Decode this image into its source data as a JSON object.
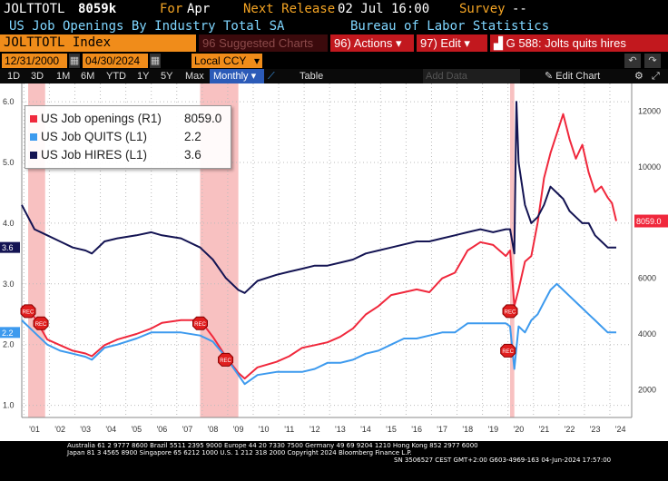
{
  "header": {
    "ticker": "JOLTTOTL",
    "value": "8059k",
    "for_label": "For",
    "for_value": "Apr",
    "next_release_label": "Next Release",
    "next_release_value": "02 Jul 16:00",
    "survey_label": "Survey",
    "survey_value": "--",
    "description": "US Job Openings By Industry Total SA",
    "source": "Bureau of Labor Statistics"
  },
  "toolbar": {
    "security": "JOLTTOTL Index",
    "suggested_charts": "Suggested Charts",
    "actions": "Actions",
    "edit": "Edit",
    "chart_title": "G 588: Jolts quits hires"
  },
  "controls": {
    "start_date": "12/31/2000",
    "end_date": "04/30/2024",
    "currency": "Local CCY"
  },
  "tabs": {
    "periods": [
      "1D",
      "3D",
      "1M",
      "6M",
      "YTD",
      "1Y",
      "5Y",
      "Max"
    ],
    "frequency": "Monthly",
    "table": "Table",
    "add_data": "Add Data",
    "edit_chart": "Edit Chart"
  },
  "legend": {
    "openings": {
      "label": "US Job openings (R1)",
      "value": "8059.0"
    },
    "quits": {
      "label": "US Job QUITS (L1)",
      "value": "2.2"
    },
    "hires": {
      "label": "US Job HIRES (L1)",
      "value": "3.6"
    }
  },
  "rec_label": "REC",
  "axis": {
    "left_ticks": [
      "6.0",
      "5.0",
      "4.0",
      "3.0",
      "2.0",
      "1.0"
    ],
    "right_ticks": [
      "12000",
      "10000",
      "8000",
      "6000",
      "4000",
      "2000"
    ],
    "x_ticks": [
      "'01",
      "'02",
      "'03",
      "'04",
      "'05",
      "'06",
      "'07",
      "'08",
      "'09",
      "'10",
      "'11",
      "'12",
      "'13",
      "'14",
      "'15",
      "'16",
      "'17",
      "'18",
      "'19",
      "'20",
      "'21",
      "'22",
      "'23",
      "'24"
    ],
    "left_markers": {
      "hires": "3.6",
      "quits": "2.2"
    },
    "right_marker": "8059.0"
  },
  "footer": {
    "line1": "Australia 61 2 9777 8600  Brazil 5511 2395 9000  Europe 44 20 7330 7500  Germany 49 69 9204 1210  Hong Kong 852 2977 6000",
    "line2": "Japan 81 3 4565 8900       Singapore 65 6212 1000       U.S. 1 212 318 2000             Copyright 2024 Bloomberg Finance L.P.",
    "line3": "SN 3506527 CEST  GMT+2:00 G603-4969-163 04-Jun-2024 17:57:00"
  },
  "colors": {
    "openings": "#f0283c",
    "quits": "#3d9aee",
    "hires": "#141453",
    "recession": "#f7b6b6"
  },
  "chart_data": {
    "type": "line",
    "x_range": [
      "2000-12",
      "2024-04"
    ],
    "left_axis": {
      "ylim": [
        0.8,
        6.3
      ],
      "ticks": [
        1.0,
        2.0,
        3.0,
        4.0,
        5.0,
        6.0
      ]
    },
    "right_axis": {
      "ylim": [
        1000,
        13000
      ],
      "ticks": [
        2000,
        4000,
        6000,
        8000,
        10000,
        12000
      ]
    },
    "recessions": [
      [
        "2001-03",
        "2001-11"
      ],
      [
        "2007-12",
        "2009-06"
      ],
      [
        "2020-02",
        "2020-04"
      ]
    ],
    "series": [
      {
        "name": "US Job openings (R1)",
        "axis": "right",
        "last": 8059.0,
        "points": [
          [
            "2000-12",
            5000
          ],
          [
            "2001-06",
            4600
          ],
          [
            "2001-12",
            3800
          ],
          [
            "2002-06",
            3600
          ],
          [
            "2002-12",
            3400
          ],
          [
            "2003-06",
            3300
          ],
          [
            "2003-09",
            3200
          ],
          [
            "2004-03",
            3600
          ],
          [
            "2004-09",
            3800
          ],
          [
            "2005-06",
            4000
          ],
          [
            "2006-01",
            4200
          ],
          [
            "2006-06",
            4400
          ],
          [
            "2007-03",
            4500
          ],
          [
            "2007-12",
            4500
          ],
          [
            "2008-06",
            3900
          ],
          [
            "2008-12",
            3200
          ],
          [
            "2009-06",
            2600
          ],
          [
            "2009-09",
            2400
          ],
          [
            "2010-03",
            2800
          ],
          [
            "2010-12",
            3000
          ],
          [
            "2011-06",
            3200
          ],
          [
            "2011-12",
            3500
          ],
          [
            "2012-06",
            3600
          ],
          [
            "2012-12",
            3700
          ],
          [
            "2013-06",
            3900
          ],
          [
            "2013-12",
            4200
          ],
          [
            "2014-06",
            4700
          ],
          [
            "2014-12",
            5000
          ],
          [
            "2015-06",
            5400
          ],
          [
            "2015-12",
            5500
          ],
          [
            "2016-06",
            5600
          ],
          [
            "2016-12",
            5500
          ],
          [
            "2017-06",
            6000
          ],
          [
            "2017-12",
            6200
          ],
          [
            "2018-06",
            7000
          ],
          [
            "2018-12",
            7300
          ],
          [
            "2019-06",
            7200
          ],
          [
            "2019-12",
            6800
          ],
          [
            "2020-02",
            7000
          ],
          [
            "2020-04",
            5000
          ],
          [
            "2020-06",
            5600
          ],
          [
            "2020-09",
            6600
          ],
          [
            "2020-12",
            6800
          ],
          [
            "2021-03",
            8000
          ],
          [
            "2021-06",
            9600
          ],
          [
            "2021-09",
            10500
          ],
          [
            "2021-12",
            11200
          ],
          [
            "2022-03",
            11900
          ],
          [
            "2022-06",
            11000
          ],
          [
            "2022-09",
            10300
          ],
          [
            "2022-12",
            10800
          ],
          [
            "2023-03",
            9800
          ],
          [
            "2023-06",
            9100
          ],
          [
            "2023-09",
            9300
          ],
          [
            "2023-12",
            8900
          ],
          [
            "2024-02",
            8700
          ],
          [
            "2024-04",
            8059
          ]
        ]
      },
      {
        "name": "US Job QUITS (L1)",
        "axis": "left",
        "last": 2.2,
        "points": [
          [
            "2000-12",
            2.4
          ],
          [
            "2001-06",
            2.2
          ],
          [
            "2001-12",
            2.0
          ],
          [
            "2002-06",
            1.9
          ],
          [
            "2002-12",
            1.85
          ],
          [
            "2003-06",
            1.8
          ],
          [
            "2003-09",
            1.75
          ],
          [
            "2004-03",
            1.95
          ],
          [
            "2004-09",
            2.0
          ],
          [
            "2005-06",
            2.1
          ],
          [
            "2006-01",
            2.2
          ],
          [
            "2006-06",
            2.2
          ],
          [
            "2007-03",
            2.2
          ],
          [
            "2007-12",
            2.15
          ],
          [
            "2008-06",
            2.05
          ],
          [
            "2008-12",
            1.8
          ],
          [
            "2009-06",
            1.5
          ],
          [
            "2009-09",
            1.35
          ],
          [
            "2010-03",
            1.5
          ],
          [
            "2010-12",
            1.55
          ],
          [
            "2011-06",
            1.55
          ],
          [
            "2011-12",
            1.55
          ],
          [
            "2012-06",
            1.6
          ],
          [
            "2012-12",
            1.7
          ],
          [
            "2013-06",
            1.7
          ],
          [
            "2013-12",
            1.75
          ],
          [
            "2014-06",
            1.85
          ],
          [
            "2014-12",
            1.9
          ],
          [
            "2015-06",
            2.0
          ],
          [
            "2015-12",
            2.1
          ],
          [
            "2016-06",
            2.1
          ],
          [
            "2016-12",
            2.15
          ],
          [
            "2017-06",
            2.2
          ],
          [
            "2017-12",
            2.2
          ],
          [
            "2018-06",
            2.35
          ],
          [
            "2018-12",
            2.35
          ],
          [
            "2019-06",
            2.35
          ],
          [
            "2019-12",
            2.35
          ],
          [
            "2020-02",
            2.3
          ],
          [
            "2020-04",
            1.6
          ],
          [
            "2020-06",
            2.3
          ],
          [
            "2020-09",
            2.2
          ],
          [
            "2020-12",
            2.4
          ],
          [
            "2021-03",
            2.5
          ],
          [
            "2021-06",
            2.7
          ],
          [
            "2021-09",
            2.9
          ],
          [
            "2021-12",
            3.0
          ],
          [
            "2022-03",
            2.9
          ],
          [
            "2022-06",
            2.8
          ],
          [
            "2022-09",
            2.7
          ],
          [
            "2022-12",
            2.6
          ],
          [
            "2023-03",
            2.5
          ],
          [
            "2023-06",
            2.4
          ],
          [
            "2023-09",
            2.3
          ],
          [
            "2023-12",
            2.2
          ],
          [
            "2024-02",
            2.2
          ],
          [
            "2024-04",
            2.2
          ]
        ]
      },
      {
        "name": "US Job HIRES (L1)",
        "axis": "left",
        "last": 3.6,
        "points": [
          [
            "2000-12",
            4.3
          ],
          [
            "2001-06",
            3.9
          ],
          [
            "2001-12",
            3.8
          ],
          [
            "2002-06",
            3.7
          ],
          [
            "2002-12",
            3.6
          ],
          [
            "2003-06",
            3.55
          ],
          [
            "2003-09",
            3.5
          ],
          [
            "2004-03",
            3.7
          ],
          [
            "2004-09",
            3.75
          ],
          [
            "2005-06",
            3.8
          ],
          [
            "2006-01",
            3.85
          ],
          [
            "2006-06",
            3.8
          ],
          [
            "2007-03",
            3.75
          ],
          [
            "2007-12",
            3.6
          ],
          [
            "2008-06",
            3.4
          ],
          [
            "2008-12",
            3.1
          ],
          [
            "2009-06",
            2.9
          ],
          [
            "2009-09",
            2.85
          ],
          [
            "2010-03",
            3.05
          ],
          [
            "2010-12",
            3.15
          ],
          [
            "2011-06",
            3.2
          ],
          [
            "2011-12",
            3.25
          ],
          [
            "2012-06",
            3.3
          ],
          [
            "2012-12",
            3.3
          ],
          [
            "2013-06",
            3.35
          ],
          [
            "2013-12",
            3.4
          ],
          [
            "2014-06",
            3.5
          ],
          [
            "2014-12",
            3.55
          ],
          [
            "2015-06",
            3.6
          ],
          [
            "2015-12",
            3.65
          ],
          [
            "2016-06",
            3.7
          ],
          [
            "2016-12",
            3.7
          ],
          [
            "2017-06",
            3.75
          ],
          [
            "2017-12",
            3.8
          ],
          [
            "2018-06",
            3.85
          ],
          [
            "2018-12",
            3.9
          ],
          [
            "2019-06",
            3.85
          ],
          [
            "2019-12",
            3.9
          ],
          [
            "2020-02",
            3.9
          ],
          [
            "2020-04",
            3.5
          ],
          [
            "2020-05",
            6.0
          ],
          [
            "2020-06",
            5.0
          ],
          [
            "2020-09",
            4.3
          ],
          [
            "2020-12",
            4.0
          ],
          [
            "2021-03",
            4.1
          ],
          [
            "2021-06",
            4.3
          ],
          [
            "2021-09",
            4.6
          ],
          [
            "2021-12",
            4.5
          ],
          [
            "2022-03",
            4.4
          ],
          [
            "2022-06",
            4.2
          ],
          [
            "2022-09",
            4.1
          ],
          [
            "2022-12",
            4.0
          ],
          [
            "2023-03",
            4.0
          ],
          [
            "2023-06",
            3.8
          ],
          [
            "2023-09",
            3.7
          ],
          [
            "2023-12",
            3.6
          ],
          [
            "2024-02",
            3.6
          ],
          [
            "2024-04",
            3.6
          ]
        ]
      }
    ]
  }
}
